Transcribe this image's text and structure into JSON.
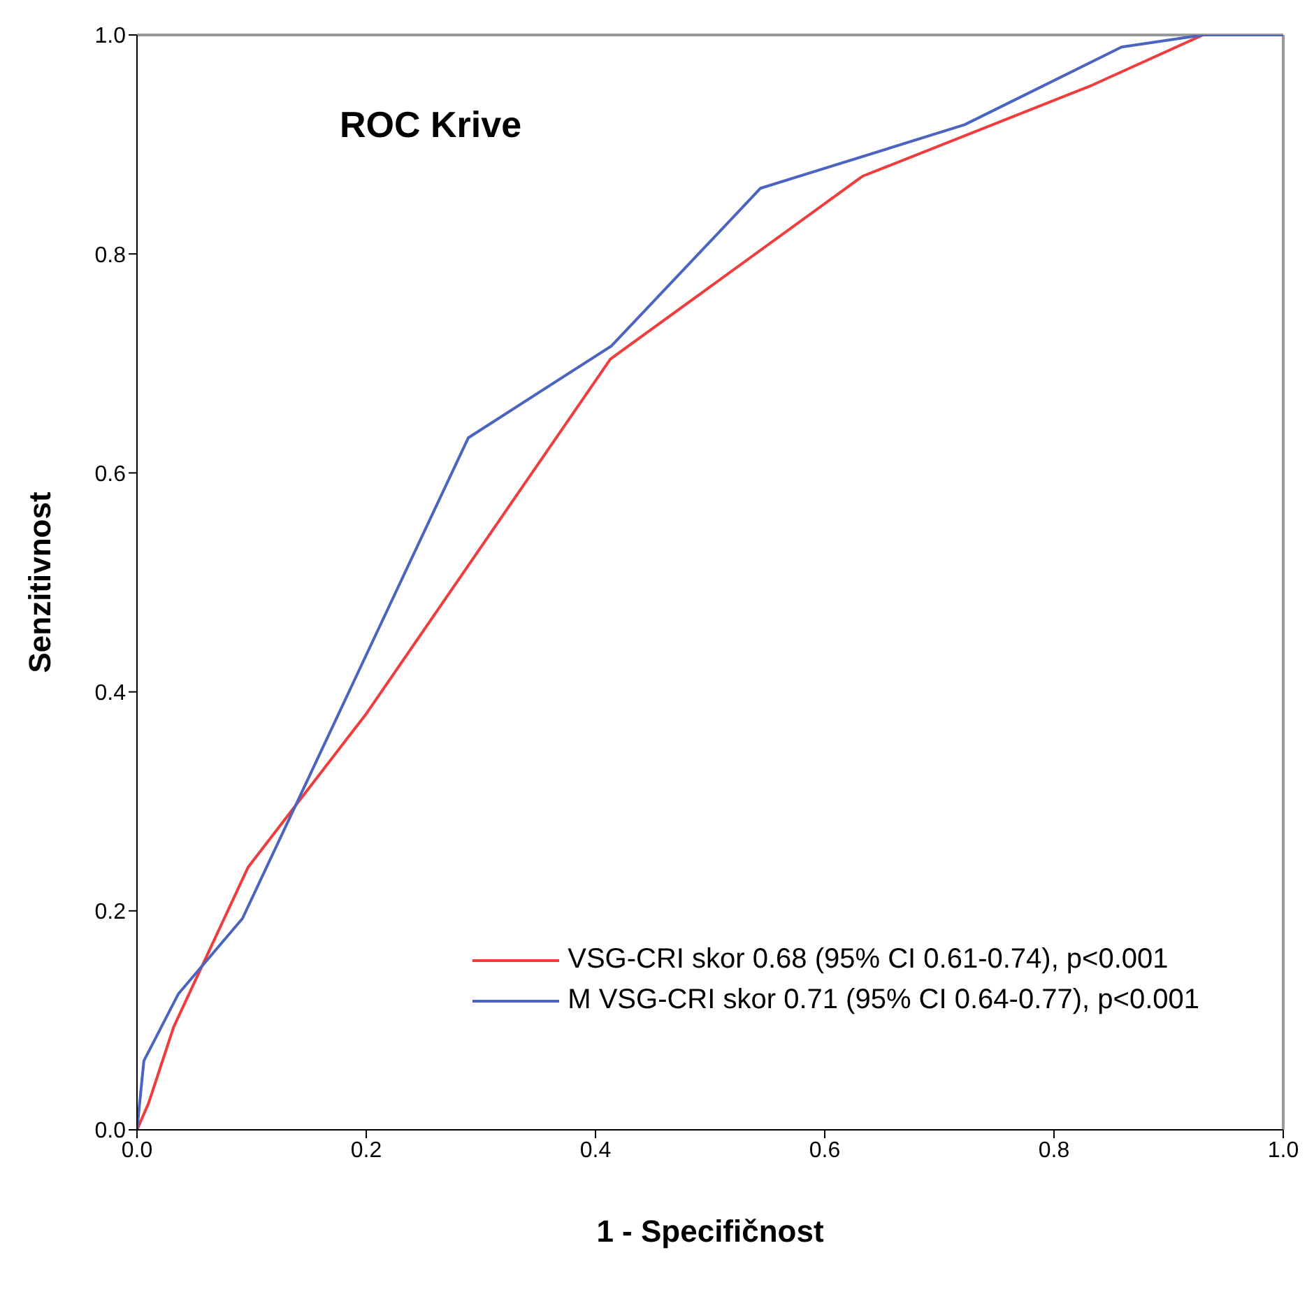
{
  "chart_data": {
    "type": "line",
    "title": "ROC Krive",
    "xlabel": "1 - Specifičnost",
    "ylabel": "Senzitivnost",
    "xlim": [
      0,
      1
    ],
    "ylim": [
      0,
      1
    ],
    "xticks": [
      {
        "value": 0,
        "label": "0.0"
      },
      {
        "value": 0.2,
        "label": "0.2"
      },
      {
        "value": 0.4,
        "label": "0.4"
      },
      {
        "value": 0.6,
        "label": "0.6"
      },
      {
        "value": 0.8,
        "label": "0.8"
      },
      {
        "value": 1,
        "label": "1.0"
      }
    ],
    "yticks": [
      {
        "value": 0,
        "label": "0.0"
      },
      {
        "value": 0.2,
        "label": "0.2"
      },
      {
        "value": 0.4,
        "label": "0.4"
      },
      {
        "value": 0.6,
        "label": "0.6"
      },
      {
        "value": 0.8,
        "label": "0.8"
      },
      {
        "value": 1,
        "label": "1.0"
      }
    ],
    "grid": false,
    "legend": "bottom right",
    "marker": "none",
    "line_style": "solid",
    "series": [
      {
        "name": "VSG-CRI skor 0.68 (95% CI 0.61-0.74), p<0.001",
        "color": "#f03c3c",
        "x": [
          0,
          0.01,
          0.032,
          0.097,
          0.2,
          0.413,
          0.633,
          0.833,
          0.93,
          1
        ],
        "values": [
          0,
          0.024,
          0.094,
          0.24,
          0.38,
          0.704,
          0.871,
          0.954,
          1,
          1
        ]
      },
      {
        "name": "M VSG-CRI skor 0.71 (95% CI 0.64-0.77), p<0.001",
        "color": "#4a64c0",
        "x": [
          0,
          0.006,
          0.036,
          0.092,
          0.289,
          0.414,
          0.544,
          0.722,
          0.859,
          0.93,
          1
        ],
        "values": [
          0,
          0.063,
          0.124,
          0.193,
          0.632,
          0.716,
          0.86,
          0.918,
          0.989,
          1,
          1
        ]
      }
    ]
  }
}
